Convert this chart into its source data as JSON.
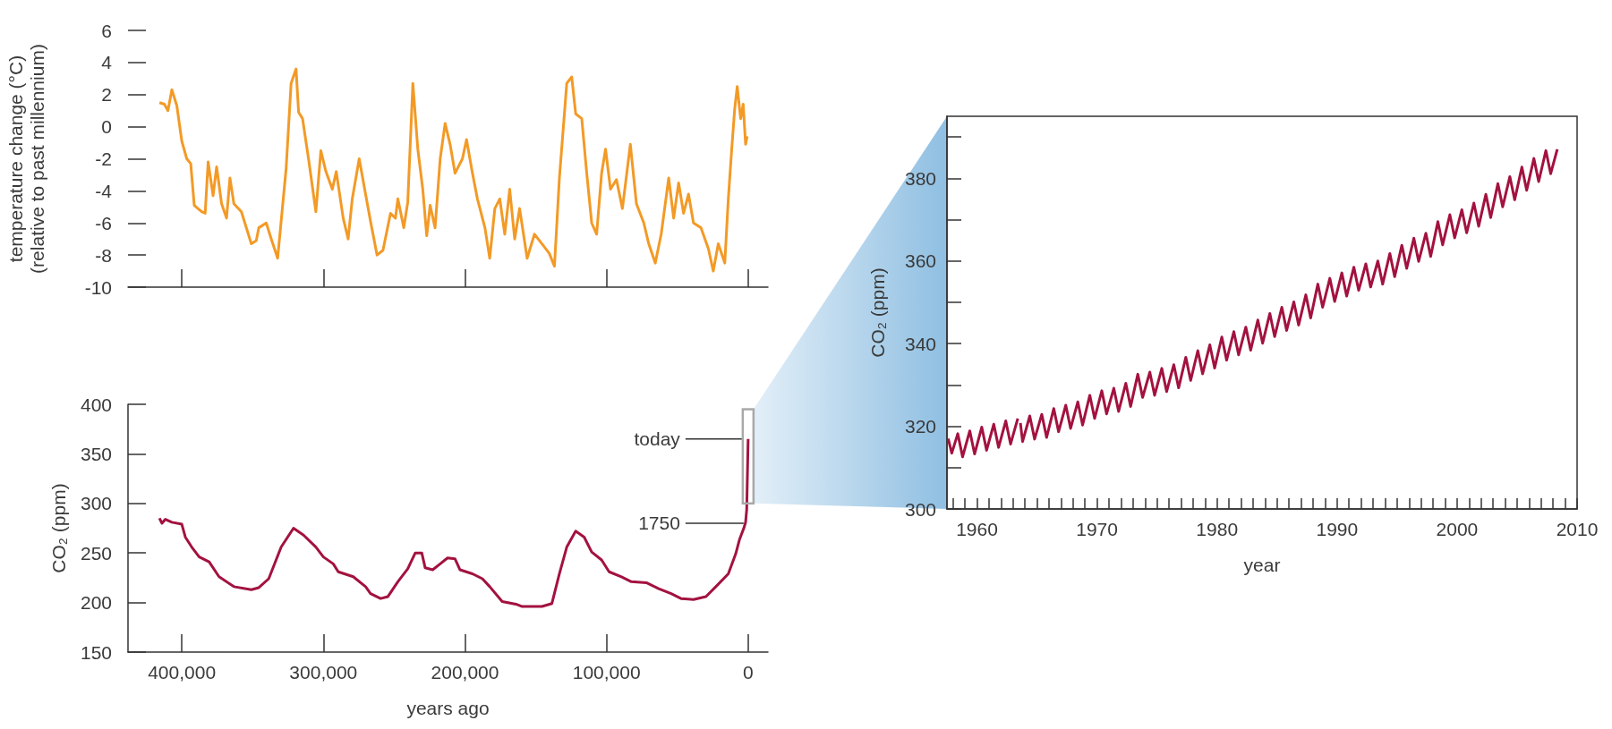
{
  "chart_data": [
    {
      "type": "line",
      "ylabel": "temperature change (°C) (relative to past millennium)",
      "color": "#f39a26",
      "x": [
        415800,
        412300,
        409800,
        407000,
        403500,
        400000,
        396500,
        393700,
        391200,
        386000,
        383500,
        381400,
        377900,
        375400,
        371900,
        368400,
        366000,
        363200,
        357900,
        350900,
        347400,
        345600,
        340350,
        336800,
        332300,
        326300,
        322800,
        319300,
        317500,
        314700,
        310500,
        305300,
        301800,
        298200,
        293700,
        290900,
        286000,
        282500,
        279600,
        274700,
        270200,
        266700,
        262100,
        257900,
        252600,
        249100,
        247400,
        243200,
        240400,
        236800,
        233300,
        229800,
        227000,
        224600,
        221100,
        217500,
        214000,
        210500,
        207000,
        201800,
        198900,
        194700,
        191200,
        185900,
        182500,
        178900,
        175400,
        171900,
        168400,
        164900,
        161400,
        156100,
        150900,
        145600,
        140400,
        136800,
        133300,
        128100,
        124600,
        121800,
        117500,
        114000,
        110500,
        107000,
        103500,
        100700,
        97200,
        93000,
        88800,
        83200,
        78900,
        73700,
        70200,
        65600,
        61400,
        56100,
        52600,
        49100,
        45600,
        42100,
        38600,
        33300,
        28100,
        24600,
        21100,
        16500,
        14000,
        11600,
        9500,
        7700,
        5300,
        3500,
        1800,
        700
      ],
      "values": [
        1.5,
        1.4,
        1.0,
        2.3,
        1.3,
        -0.9,
        -2.0,
        -2.3,
        -4.9,
        -5.3,
        -5.4,
        -2.2,
        -4.3,
        -2.5,
        -4.8,
        -5.7,
        -3.2,
        -4.8,
        -5.3,
        -7.3,
        -7.1,
        -6.3,
        -6.0,
        -7.0,
        -8.2,
        -2.6,
        2.7,
        3.6,
        0.9,
        0.5,
        -2.0,
        -5.3,
        -1.5,
        -2.8,
        -3.9,
        -2.8,
        -5.7,
        -7.0,
        -4.5,
        -2.0,
        -4.2,
        -5.9,
        -8.0,
        -7.7,
        -5.4,
        -5.7,
        -4.5,
        -6.3,
        -4.7,
        2.7,
        -1.4,
        -3.9,
        -6.8,
        -4.9,
        -6.3,
        -2.0,
        0.2,
        -1.1,
        -2.9,
        -2.0,
        -0.8,
        -2.9,
        -4.5,
        -6.3,
        -8.2,
        -5.1,
        -4.5,
        -6.7,
        -3.9,
        -7.0,
        -5.1,
        -8.2,
        -6.7,
        -7.3,
        -7.9,
        -8.7,
        -3.2,
        2.7,
        3.1,
        0.8,
        0.5,
        -2.9,
        -6.0,
        -6.7,
        -2.9,
        -1.4,
        -3.9,
        -3.3,
        -5.1,
        -1.1,
        -4.8,
        -6.0,
        -7.3,
        -8.5,
        -6.7,
        -3.2,
        -5.7,
        -3.5,
        -5.4,
        -4.2,
        -6.0,
        -6.3,
        -7.6,
        -9.0,
        -7.3,
        -8.5,
        -4.5,
        -1.4,
        1.1,
        2.5,
        0.5,
        1.4,
        -1.1,
        -0.6
      ],
      "xlim": [
        438000,
        -14000
      ],
      "xticks": [
        400000,
        300000,
        200000,
        100000,
        0
      ],
      "ylim": [
        -10,
        6
      ],
      "yticks": [
        -10,
        -8,
        -6,
        -4,
        -2,
        0,
        2,
        4,
        6
      ],
      "tick_labels": "y",
      "grid": false
    },
    {
      "type": "line",
      "xlabel": "years ago",
      "ylabel": "CO₂ (ppm)",
      "color": "#a3123f",
      "x": [
        415800,
        414000,
        411600,
        407000,
        400000,
        397500,
        393000,
        387700,
        380700,
        373700,
        363200,
        350900,
        345600,
        338600,
        329800,
        321100,
        314000,
        305300,
        300000,
        293000,
        289500,
        278900,
        270200,
        266700,
        259600,
        254400,
        247400,
        240400,
        235100,
        230500,
        228100,
        222800,
        217500,
        212300,
        207000,
        203500,
        194700,
        187700,
        182500,
        173700,
        163200,
        159600,
        145600,
        138600,
        133300,
        128100,
        121800,
        115800,
        110500,
        103500,
        98200,
        89500,
        82500,
        71900,
        63200,
        54400,
        47400,
        38600,
        29800,
        22800,
        14000,
        8800,
        6000,
        2800,
        1800,
        1000,
        0
      ],
      "values": [
        285,
        280,
        284,
        281,
        279,
        266,
        256,
        246,
        241,
        226,
        216,
        213,
        215,
        224,
        256,
        275,
        268,
        256,
        246,
        239,
        231,
        226,
        216,
        209,
        204,
        206,
        221,
        234,
        250,
        250,
        235,
        233,
        239,
        245,
        244,
        233,
        229,
        224,
        216,
        201,
        198,
        196,
        196,
        199,
        229,
        256,
        272,
        266,
        251,
        243,
        231,
        226,
        221,
        220,
        214,
        209,
        204,
        203,
        206,
        216,
        229,
        249,
        264,
        276,
        281,
        294,
        365
      ],
      "xlim": [
        438000,
        -14000
      ],
      "xticks": [
        {
          "value": 400000,
          "label": "400,000"
        },
        {
          "value": 300000,
          "label": "300,000"
        },
        {
          "value": 200000,
          "label": "200,000"
        },
        {
          "value": 100000,
          "label": "100,000"
        },
        0
      ],
      "ylim": [
        150,
        400
      ],
      "yticks": [
        150,
        200,
        250,
        300,
        350,
        400
      ],
      "grid": false,
      "annotations": [
        {
          "text": "today",
          "x": 0,
          "y": 365
        },
        {
          "text": "1750",
          "x": 0,
          "y": 280
        }
      ]
    },
    {
      "type": "line",
      "xlabel": "year",
      "ylabel": "CO₂ (ppm)",
      "color": "#a3123f",
      "x": [
        1957.6,
        1957.9,
        1958.4,
        1958.8,
        1959.4,
        1959.8,
        1960.4,
        1960.8,
        1961.4,
        1961.8,
        1962.4,
        1962.8,
        1963.4,
        1963.5,
        1963.62,
        1963.8,
        1964.4,
        1964.8,
        1965.4,
        1965.8,
        1966.4,
        1966.8,
        1967.4,
        1967.8,
        1968.4,
        1968.8,
        1969.4,
        1969.8,
        1970.4,
        1970.8,
        1971.4,
        1971.8,
        1972.4,
        1972.8,
        1973.4,
        1973.8,
        1974.4,
        1974.8,
        1975.4,
        1975.8,
        1976.4,
        1976.8,
        1977.4,
        1977.8,
        1978.4,
        1978.8,
        1979.4,
        1979.8,
        1980.4,
        1980.8,
        1981.4,
        1981.8,
        1982.4,
        1982.8,
        1983.4,
        1983.8,
        1984.4,
        1984.8,
        1985.4,
        1985.8,
        1986.4,
        1986.8,
        1987.4,
        1987.8,
        1988.4,
        1988.8,
        1989.4,
        1989.8,
        1990.4,
        1990.8,
        1991.4,
        1991.8,
        1992.4,
        1992.8,
        1993.4,
        1993.8,
        1994.4,
        1994.8,
        1995.4,
        1995.8,
        1996.4,
        1996.8,
        1997.4,
        1997.8,
        1998.4,
        1998.8,
        1999.4,
        1999.8,
        2000.4,
        2000.8,
        2001.4,
        2001.8,
        2002.4,
        2002.8,
        2003.4,
        2003.8,
        2004.4,
        2004.8,
        2005.4,
        2005.8,
        2006.4,
        2006.8,
        2007.4,
        2007.8,
        2008.35
      ],
      "values": [
        317.0,
        313.5,
        318.2,
        312.6,
        318.9,
        313.3,
        319.8,
        314.2,
        320.5,
        314.9,
        321.3,
        315.7,
        321.9,
        null,
        320.8,
        316.3,
        322.5,
        316.9,
        322.9,
        317.3,
        324.3,
        318.7,
        325.1,
        319.5,
        325.9,
        320.3,
        327.5,
        321.9,
        328.6,
        323.0,
        329.2,
        323.6,
        330.4,
        324.8,
        332.6,
        327.0,
        333.1,
        327.5,
        334.0,
        328.4,
        334.9,
        329.3,
        336.7,
        331.1,
        338.3,
        332.7,
        339.7,
        334.1,
        341.6,
        336.0,
        342.9,
        337.3,
        344.0,
        338.4,
        345.7,
        340.1,
        347.3,
        341.7,
        348.8,
        343.2,
        350.1,
        344.5,
        351.8,
        346.2,
        354.4,
        348.8,
        355.8,
        350.2,
        357.1,
        351.5,
        358.5,
        352.9,
        359.3,
        353.7,
        360.0,
        354.4,
        361.8,
        356.2,
        363.8,
        358.2,
        365.5,
        359.9,
        366.7,
        361.1,
        369.5,
        363.9,
        371.2,
        365.6,
        372.4,
        366.8,
        374.0,
        368.4,
        376.1,
        370.5,
        378.7,
        373.1,
        380.4,
        374.8,
        382.7,
        377.1,
        384.8,
        379.2,
        386.7,
        381.1,
        387.0
      ],
      "xlim": [
        1957.5,
        2010
      ],
      "xticks": [
        {
          "value": 1958,
          "label": null
        },
        {
          "value": 1959,
          "label": null
        },
        1960,
        {
          "value": 1961,
          "label": null
        },
        {
          "value": 1962,
          "label": null
        },
        {
          "value": 1963,
          "label": null
        },
        {
          "value": 1964,
          "label": null
        },
        {
          "value": 1965,
          "label": null
        },
        {
          "value": 1966,
          "label": null
        },
        {
          "value": 1967,
          "label": null
        },
        {
          "value": 1968,
          "label": null
        },
        {
          "value": 1969,
          "label": null
        },
        1970,
        {
          "value": 1971,
          "label": null
        },
        {
          "value": 1972,
          "label": null
        },
        {
          "value": 1973,
          "label": null
        },
        {
          "value": 1974,
          "label": null
        },
        {
          "value": 1975,
          "label": null
        },
        {
          "value": 1976,
          "label": null
        },
        {
          "value": 1977,
          "label": null
        },
        {
          "value": 1978,
          "label": null
        },
        {
          "value": 1979,
          "label": null
        },
        1980,
        {
          "value": 1981,
          "label": null
        },
        {
          "value": 1982,
          "label": null
        },
        {
          "value": 1983,
          "label": null
        },
        {
          "value": 1984,
          "label": null
        },
        {
          "value": 1985,
          "label": null
        },
        {
          "value": 1986,
          "label": null
        },
        {
          "value": 1987,
          "label": null
        },
        {
          "value": 1988,
          "label": null
        },
        {
          "value": 1989,
          "label": null
        },
        1990,
        {
          "value": 1991,
          "label": null
        },
        {
          "value": 1992,
          "label": null
        },
        {
          "value": 1993,
          "label": null
        },
        {
          "value": 1994,
          "label": null
        },
        {
          "value": 1995,
          "label": null
        },
        {
          "value": 1996,
          "label": null
        },
        {
          "value": 1997,
          "label": null
        },
        {
          "value": 1998,
          "label": null
        },
        {
          "value": 1999,
          "label": null
        },
        2000,
        {
          "value": 2001,
          "label": null
        },
        {
          "value": 2002,
          "label": null
        },
        {
          "value": 2003,
          "label": null
        },
        {
          "value": 2004,
          "label": null
        },
        {
          "value": 2005,
          "label": null
        },
        {
          "value": 2006,
          "label": null
        },
        {
          "value": 2007,
          "label": null
        },
        {
          "value": 2008,
          "label": null
        },
        {
          "value": 2009,
          "label": null
        },
        2010
      ],
      "ylim": [
        300,
        395
      ],
      "yticks": [
        300,
        {
          "value": 310,
          "label": null
        },
        320,
        {
          "value": 330,
          "label": null
        },
        340,
        {
          "value": 350,
          "label": null
        },
        360,
        {
          "value": 370,
          "label": null
        },
        380,
        {
          "value": 390,
          "label": null
        }
      ],
      "grid": false
    }
  ]
}
